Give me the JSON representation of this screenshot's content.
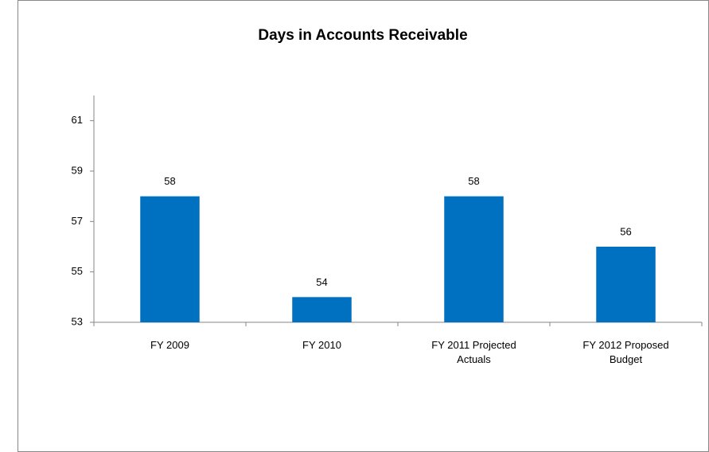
{
  "chart_data": {
    "type": "bar",
    "title": "Days in Accounts Receivable",
    "categories": [
      "FY 2009",
      "FY 2010",
      "FY 2011 Projected Actuals",
      "FY 2012 Proposed Budget"
    ],
    "values": [
      58,
      54,
      58,
      56
    ],
    "color": "#0070c0",
    "ylim": [
      53,
      62
    ],
    "yticks": [
      53,
      55,
      57,
      59,
      61
    ],
    "grid": false
  }
}
